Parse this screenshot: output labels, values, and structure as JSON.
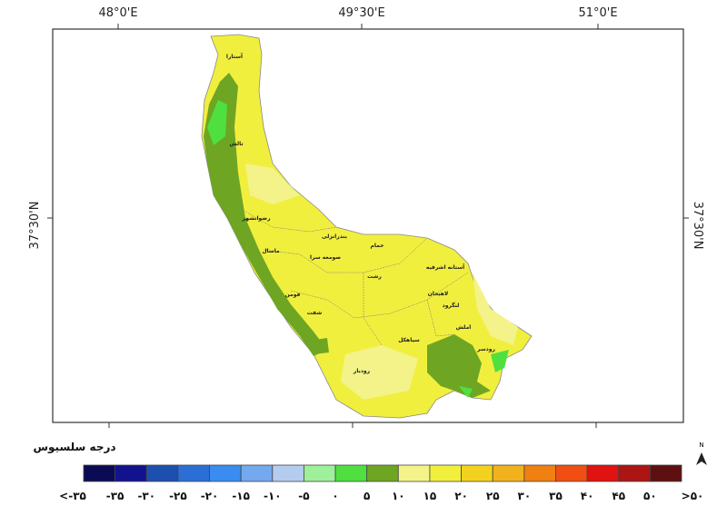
{
  "map": {
    "longitude_labels": [
      "48°0'E",
      "49°30'E",
      "51°0'E"
    ],
    "latitude_label": "37°30'N",
    "places": [
      "آستارا",
      "تالش",
      "رضوانشهر",
      "ماسال",
      "صومعه سرا",
      "فومن",
      "شفت",
      "رشت",
      "بندرانزلی",
      "خمام",
      "آستانه اشرفیه",
      "لاهیجان",
      "لنگرود",
      "سیاهکل",
      "املش",
      "رودسر",
      "رودبار"
    ],
    "north": "N"
  },
  "legend": {
    "unit": "درجه سلسیوس",
    "colors": [
      "#0b0b55",
      "#12128f",
      "#1d4fae",
      "#2b6fd6",
      "#3a8cf0",
      "#74a9ee",
      "#b4ccf0",
      "#9ef09a",
      "#4fe040",
      "#6ea623",
      "#f3f38a",
      "#f1ef3e",
      "#f2d21f",
      "#f2b21e",
      "#f08012",
      "#f04e12",
      "#e01212",
      "#ad1414",
      "#5e1010"
    ],
    "labels": [
      "<-۳۵",
      "-۳۵",
      "-۳۰",
      "-۲۵",
      "-۲۰",
      "-۱۵",
      "-۱۰",
      "-۵",
      "۰",
      "۵",
      "۱۰",
      "۱۵",
      "۲۰",
      "۲۵",
      "۳۰",
      "۳۵",
      "۴۰",
      "۴۵",
      "۵۰",
      ">۵۰"
    ]
  }
}
